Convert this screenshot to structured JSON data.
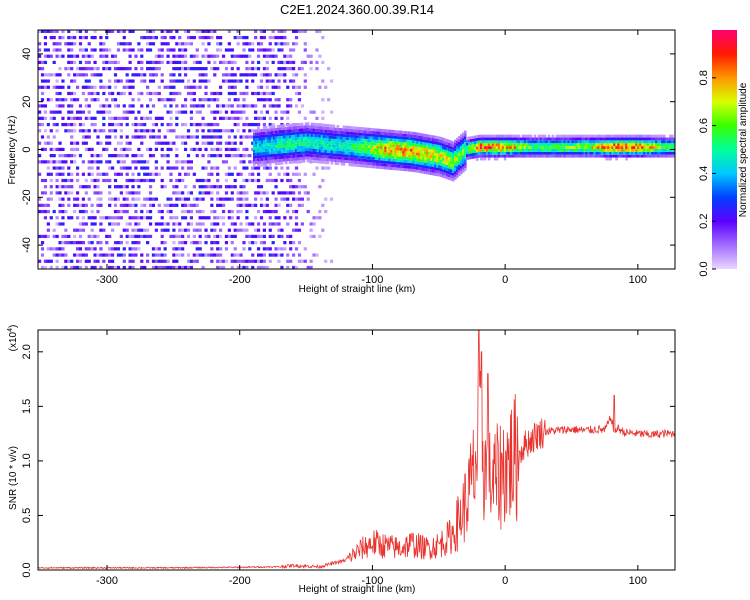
{
  "title": "C2E1.2024.360.00.39.R14",
  "top_panel": {
    "xlabel": "Height of straight line (km)",
    "ylabel": "Frequency (Hz)",
    "xlim": [
      -352,
      128
    ],
    "ylim": [
      -50,
      50
    ],
    "xticks": [
      "-300",
      "-200",
      "-100",
      "0",
      "100"
    ],
    "xtick_values": [
      -300,
      -200,
      -100,
      0,
      100
    ],
    "yticks": [
      "-40",
      "-20",
      "0",
      "20",
      "40"
    ],
    "ytick_values": [
      -40,
      -20,
      0,
      20,
      40
    ],
    "colorbar": {
      "label": "Normalized spectral amplitude",
      "ticks": [
        "0.0",
        "0.2",
        "0.4",
        "0.6",
        "0.8"
      ],
      "tick_values": [
        0.0,
        0.2,
        0.4,
        0.6,
        0.8
      ],
      "range": [
        0,
        1
      ]
    }
  },
  "bottom_panel": {
    "xlabel": "Height of straight line (km)",
    "ylabel": "SNR (10 * v/v)",
    "exponent_label": "(x10",
    "exponent_power": "4",
    "exponent_close": ")",
    "xlim": [
      -352,
      128
    ],
    "ylim": [
      0,
      22000
    ],
    "xticks": [
      "-300",
      "-200",
      "-100",
      "0",
      "100"
    ],
    "xtick_values": [
      -300,
      -200,
      -100,
      0,
      100
    ],
    "yticks": [
      "0.0",
      "0.5",
      "1.0",
      "1.5",
      "2.0"
    ],
    "ytick_values": [
      0,
      5000,
      10000,
      15000,
      20000
    ],
    "line_color": "#e8332e"
  },
  "chart_data": [
    {
      "type": "heatmap",
      "title": "C2E1.2024.360.00.39.R14",
      "xlabel": "Height of straight line (km)",
      "ylabel": "Frequency (Hz)",
      "xlim": [
        -352,
        128
      ],
      "ylim": [
        -50,
        50
      ],
      "colorbar_label": "Normalized spectral amplitude",
      "colorbar_range": [
        0,
        1
      ],
      "description_points": {
        "x": [
          -190,
          -170,
          -150,
          -130,
          -110,
          -90,
          -70,
          -50,
          -40,
          -30,
          -20,
          -10,
          0,
          20,
          40,
          60,
          80,
          100,
          120
        ],
        "ridge_frequency_hz": [
          1,
          2,
          3,
          2,
          1,
          0,
          -1,
          -3,
          -5,
          0,
          1,
          1,
          1,
          1,
          1,
          1,
          1,
          1,
          1
        ],
        "peak_amplitude": [
          0.45,
          0.55,
          0.55,
          0.5,
          0.6,
          0.85,
          0.85,
          0.75,
          0.7,
          0.6,
          0.95,
          0.95,
          0.9,
          0.6,
          0.65,
          0.7,
          0.95,
          0.95,
          0.6
        ]
      },
      "noise_region_x": [
        -352,
        -132
      ]
    },
    {
      "type": "line",
      "xlabel": "Height of straight line (km)",
      "ylabel": "SNR (10 * v/v)",
      "xlim": [
        -352,
        128
      ],
      "ylim": [
        0,
        22000
      ],
      "series_points": {
        "x": [
          -352,
          -300,
          -250,
          -200,
          -170,
          -160,
          -140,
          -120,
          -110,
          -100,
          -90,
          -80,
          -70,
          -60,
          -50,
          -40,
          -35,
          -30,
          -25,
          -22,
          -18,
          -15,
          -10,
          -5,
          0,
          5,
          10,
          15,
          20,
          25,
          30,
          40,
          50,
          60,
          70,
          75,
          80,
          82,
          85,
          90,
          100,
          110,
          120,
          128
        ],
        "y": [
          200,
          200,
          200,
          250,
          300,
          400,
          300,
          900,
          1800,
          2500,
          2200,
          2000,
          2400,
          2000,
          2300,
          3200,
          4500,
          6000,
          8000,
          10000,
          12000,
          9000,
          8000,
          8500,
          9500,
          10000,
          10500,
          11500,
          12000,
          12500,
          12700,
          12800,
          12900,
          12800,
          12900,
          12800,
          14000,
          12700,
          13000,
          12600,
          12500,
          12400,
          12500,
          12500
        ]
      },
      "spikes": [
        {
          "x": -20,
          "y": 22000
        },
        {
          "x": -18,
          "y": 20000
        },
        {
          "x": -13,
          "y": 18000
        },
        {
          "x": 82,
          "y": 16000
        }
      ]
    }
  ]
}
